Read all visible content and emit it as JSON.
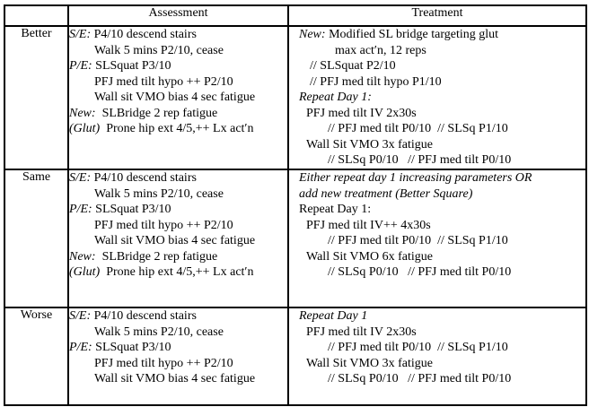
{
  "table": {
    "headers": {
      "assessment": "Assessment",
      "treatment": "Treatment"
    },
    "rows": [
      {
        "label": "Better",
        "assessment": [
          {
            "indent": 0,
            "segments": [
              {
                "text": "S/E:",
                "italic": true
              },
              {
                "text": " P4/10 descend stairs"
              }
            ]
          },
          {
            "indent": 28,
            "segments": [
              {
                "text": "Walk 5 mins P2/10, cease"
              }
            ]
          },
          {
            "indent": 0,
            "segments": [
              {
                "text": "P/E:",
                "italic": true
              },
              {
                "text": " SLSquat P3/10"
              }
            ]
          },
          {
            "indent": 28,
            "segments": [
              {
                "text": "PFJ med tilt hypo ++ P2/10"
              }
            ]
          },
          {
            "indent": 28,
            "segments": [
              {
                "text": "Wall sit VMO bias 4 sec fatigue"
              }
            ]
          },
          {
            "indent": 0,
            "segments": [
              {
                "text": "New:",
                "italic": true
              },
              {
                "text": "  SLBridge 2 rep fatigue"
              }
            ]
          },
          {
            "indent": 0,
            "segments": [
              {
                "text": "(Glut)",
                "italic": true
              },
              {
                "text": "  Prone hip ext 4/5,++ Lx act′n"
              }
            ]
          }
        ],
        "treatment": [
          {
            "indent": 0,
            "segments": [
              {
                "text": "New:",
                "italic": true
              },
              {
                "text": " Modified SL bridge targeting glut"
              }
            ]
          },
          {
            "indent": 40,
            "segments": [
              {
                "text": "max act′n, 12 reps"
              }
            ]
          },
          {
            "indent": 12,
            "segments": [
              {
                "text": "// SLSquat P2/10"
              }
            ]
          },
          {
            "indent": 12,
            "segments": [
              {
                "text": "// PFJ med tilt hypo P1/10"
              }
            ]
          },
          {
            "indent": 0,
            "segments": [
              {
                "text": "Repeat Day 1:",
                "italic": true
              }
            ]
          },
          {
            "indent": 8,
            "segments": [
              {
                "text": "PFJ med tilt IV 2x30s"
              }
            ]
          },
          {
            "indent": 32,
            "segments": [
              {
                "text": "// PFJ med tilt P0/10  // SLSq P1/10"
              }
            ]
          },
          {
            "indent": 8,
            "segments": [
              {
                "text": "Wall Sit VMO 3x fatigue"
              }
            ]
          },
          {
            "indent": 32,
            "segments": [
              {
                "text": "// SLSq P0/10   // PFJ med tilt P0/10"
              }
            ]
          }
        ]
      },
      {
        "label": "Same",
        "assessment": [
          {
            "indent": 0,
            "segments": [
              {
                "text": "S/E:",
                "italic": true
              },
              {
                "text": " P4/10 descend stairs"
              }
            ]
          },
          {
            "indent": 28,
            "segments": [
              {
                "text": "Walk 5 mins P2/10, cease"
              }
            ]
          },
          {
            "indent": 0,
            "segments": [
              {
                "text": "P/E:",
                "italic": true
              },
              {
                "text": " SLSquat P3/10"
              }
            ]
          },
          {
            "indent": 28,
            "segments": [
              {
                "text": "PFJ med tilt hypo ++ P2/10"
              }
            ]
          },
          {
            "indent": 28,
            "segments": [
              {
                "text": "Wall sit VMO bias 4 sec fatigue"
              }
            ]
          },
          {
            "indent": 0,
            "segments": [
              {
                "text": "New:",
                "italic": true
              },
              {
                "text": "  SLBridge 2 rep fatigue"
              }
            ]
          },
          {
            "indent": 0,
            "segments": [
              {
                "text": "(Glut)",
                "italic": true
              },
              {
                "text": "  Prone hip ext 4/5,++ Lx act′n"
              }
            ]
          }
        ],
        "treatment": [
          {
            "indent": 0,
            "segments": [
              {
                "text": "Either repeat day 1 increasing parameters OR",
                "italic": true
              }
            ]
          },
          {
            "indent": 0,
            "segments": [
              {
                "text": "add new treatment (Better Square)",
                "italic": true
              }
            ]
          },
          {
            "indent": 0,
            "segments": [
              {
                "text": "Repeat Day 1:"
              }
            ]
          },
          {
            "indent": 8,
            "segments": [
              {
                "text": "PFJ med tilt IV++ 4x30s"
              }
            ]
          },
          {
            "indent": 32,
            "segments": [
              {
                "text": "// PFJ med tilt P0/10  // SLSq P1/10"
              }
            ]
          },
          {
            "indent": 8,
            "segments": [
              {
                "text": "Wall Sit VMO 6x fatigue"
              }
            ]
          },
          {
            "indent": 32,
            "segments": [
              {
                "text": "// SLSq P0/10   // PFJ med tilt P0/10"
              }
            ]
          }
        ]
      },
      {
        "label": "Worse",
        "assessment": [
          {
            "indent": 0,
            "segments": [
              {
                "text": "S/E:",
                "italic": true
              },
              {
                "text": " P4/10 descend stairs"
              }
            ]
          },
          {
            "indent": 28,
            "segments": [
              {
                "text": "Walk 5 mins P2/10, cease"
              }
            ]
          },
          {
            "indent": 0,
            "segments": [
              {
                "text": "P/E:",
                "italic": true
              },
              {
                "text": " SLSquat P3/10"
              }
            ]
          },
          {
            "indent": 28,
            "segments": [
              {
                "text": "PFJ med tilt hypo ++ P2/10"
              }
            ]
          },
          {
            "indent": 28,
            "segments": [
              {
                "text": "Wall sit VMO bias 4 sec fatigue"
              }
            ]
          }
        ],
        "treatment": [
          {
            "indent": 0,
            "segments": [
              {
                "text": "Repeat Day 1",
                "italic": true
              }
            ]
          },
          {
            "indent": 8,
            "segments": [
              {
                "text": "PFJ med tilt IV 2x30s"
              }
            ]
          },
          {
            "indent": 32,
            "segments": [
              {
                "text": "// PFJ med tilt P0/10  // SLSq P1/10"
              }
            ]
          },
          {
            "indent": 8,
            "segments": [
              {
                "text": "Wall Sit VMO 3x fatigue"
              }
            ]
          },
          {
            "indent": 32,
            "segments": [
              {
                "text": "// SLSq P0/10   // PFJ med tilt P0/10"
              }
            ]
          }
        ]
      }
    ]
  }
}
